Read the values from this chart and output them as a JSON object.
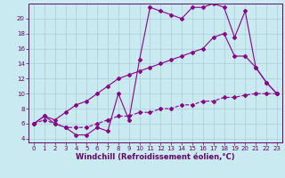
{
  "xlabel": "Windchill (Refroidissement éolien,°C)",
  "bg_color": "#c8eaf0",
  "grid_color": "#aaccd8",
  "line_color": "#880088",
  "axis_label_color": "#660066",
  "tick_color": "#660066",
  "xlim": [
    -0.5,
    23.5
  ],
  "ylim": [
    3.5,
    22.0
  ],
  "xticks": [
    0,
    1,
    2,
    3,
    4,
    5,
    6,
    7,
    8,
    9,
    10,
    11,
    12,
    13,
    14,
    15,
    16,
    17,
    18,
    19,
    20,
    21,
    22,
    23
  ],
  "yticks": [
    4,
    6,
    8,
    10,
    12,
    14,
    16,
    18,
    20
  ],
  "curve1_x": [
    0,
    1,
    2,
    3,
    4,
    5,
    6,
    7,
    8,
    9,
    10,
    11,
    12,
    13,
    14,
    15,
    16,
    17,
    18,
    19,
    20,
    21,
    22,
    23
  ],
  "curve1_y": [
    6.0,
    7.0,
    6.0,
    5.5,
    4.5,
    4.5,
    5.5,
    5.0,
    10.0,
    6.5,
    14.5,
    21.5,
    21.0,
    20.5,
    20.0,
    21.5,
    21.5,
    22.0,
    21.5,
    17.5,
    21.0,
    13.5,
    11.5,
    10.0
  ],
  "curve2_x": [
    0,
    1,
    2,
    3,
    4,
    5,
    6,
    7,
    8,
    9,
    10,
    11,
    12,
    13,
    14,
    15,
    16,
    17,
    18,
    19,
    20,
    21,
    22,
    23
  ],
  "curve2_y": [
    6.0,
    7.0,
    6.5,
    7.5,
    8.5,
    9.0,
    10.0,
    11.0,
    12.0,
    12.5,
    13.0,
    13.5,
    14.0,
    14.5,
    15.0,
    15.5,
    16.0,
    17.5,
    18.0,
    15.0,
    15.0,
    13.5,
    11.5,
    10.0
  ],
  "curve3_x": [
    0,
    1,
    2,
    3,
    4,
    5,
    6,
    7,
    8,
    9,
    10,
    11,
    12,
    13,
    14,
    15,
    16,
    17,
    18,
    19,
    20,
    21,
    22,
    23
  ],
  "curve3_y": [
    6.0,
    6.5,
    6.0,
    5.5,
    5.5,
    5.5,
    6.0,
    6.5,
    7.0,
    7.0,
    7.5,
    7.5,
    8.0,
    8.0,
    8.5,
    8.5,
    9.0,
    9.0,
    9.5,
    9.5,
    9.8,
    10.0,
    10.0,
    10.0
  ],
  "marker": "D",
  "markersize": 2.0,
  "linewidth": 0.8,
  "xlabel_fontsize": 6.0,
  "tick_fontsize": 5.0
}
